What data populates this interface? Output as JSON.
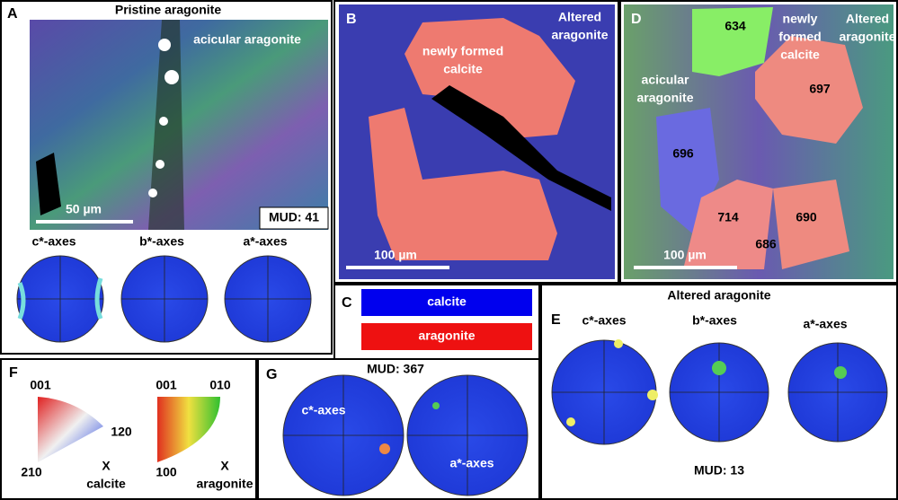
{
  "panel_a": {
    "letter": "A",
    "title": "Pristine aragonite",
    "label": "acicular aragonite",
    "scale": "50 µm",
    "mud": "MUD: 41",
    "axes": [
      "c*-axes",
      "b*-axes",
      "a*-axes"
    ]
  },
  "panel_b": {
    "letter": "B",
    "label_lines": [
      "newly formed",
      "calcite"
    ],
    "corner_lines": [
      "Altered",
      "aragonite"
    ],
    "scale": "100 µm"
  },
  "panel_c": {
    "letter": "C",
    "legend": [
      "calcite",
      "aragonite"
    ]
  },
  "panel_d": {
    "letter": "D",
    "label_lines": [
      "newly",
      "formed",
      "calcite"
    ],
    "corner_lines": [
      "Altered",
      "aragonite"
    ],
    "acicular_lines": [
      "acicular",
      "aragonite"
    ],
    "grains": [
      "634",
      "697",
      "696",
      "714",
      "690",
      "686"
    ],
    "scale": "100 µm"
  },
  "panel_e": {
    "letter": "E",
    "title": "Altered aragonite",
    "axes": [
      "c*-axes",
      "b*-axes",
      "a*-axes"
    ],
    "mud": "MUD: 13"
  },
  "panel_f": {
    "letter": "F",
    "calcite": {
      "top": "001",
      "right": "120",
      "bottom": "210",
      "x": "X",
      "name": "calcite"
    },
    "aragonite": {
      "top_left": "001",
      "top_right": "010",
      "bottom": "100",
      "x": "X",
      "name": "aragonite"
    }
  },
  "panel_g": {
    "letter": "G",
    "mud": "MUD: 367",
    "axes": [
      "c*-axes",
      "a*-axes"
    ]
  }
}
